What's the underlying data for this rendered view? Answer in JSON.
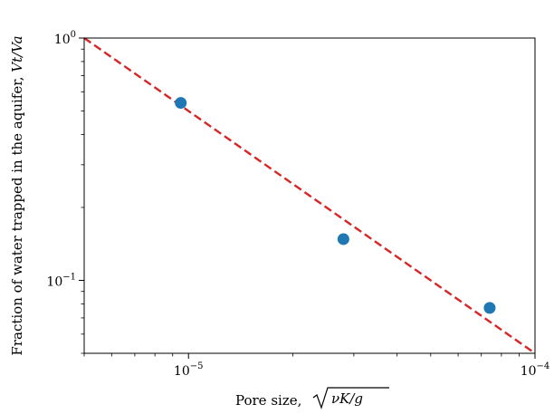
{
  "chart_data": {
    "type": "scatter",
    "title": "",
    "xlabel_prefix": "Pore size, ",
    "xlabel_math": "νK/g",
    "ylabel_prefix": "Fraction of water trapped in the aquifer, ",
    "ylabel_math": "Vt/Va",
    "x_scale": "log",
    "y_scale": "log",
    "xlim": [
      5e-06,
      0.0001
    ],
    "ylim": [
      0.05,
      1.0
    ],
    "x_ticks": [
      {
        "value": 1e-05,
        "base": "10",
        "exp": "−5"
      },
      {
        "value": 0.0001,
        "base": "10",
        "exp": "−4"
      }
    ],
    "y_ticks": [
      {
        "value": 1.0,
        "base": "10",
        "exp": "0"
      },
      {
        "value": 0.1,
        "base": "10",
        "exp": "−1"
      }
    ],
    "series": [
      {
        "kind": "points",
        "color": "#1f77b4",
        "x": [
          9.5e-06,
          2.8e-05,
          7.4e-05
        ],
        "y": [
          0.54,
          0.148,
          0.077
        ]
      },
      {
        "kind": "fit-line",
        "style": "dashed",
        "color": "#d62728",
        "x": [
          5e-06,
          0.0001
        ],
        "y": [
          1.0,
          0.05
        ]
      }
    ],
    "grid": false,
    "legend": "none"
  }
}
